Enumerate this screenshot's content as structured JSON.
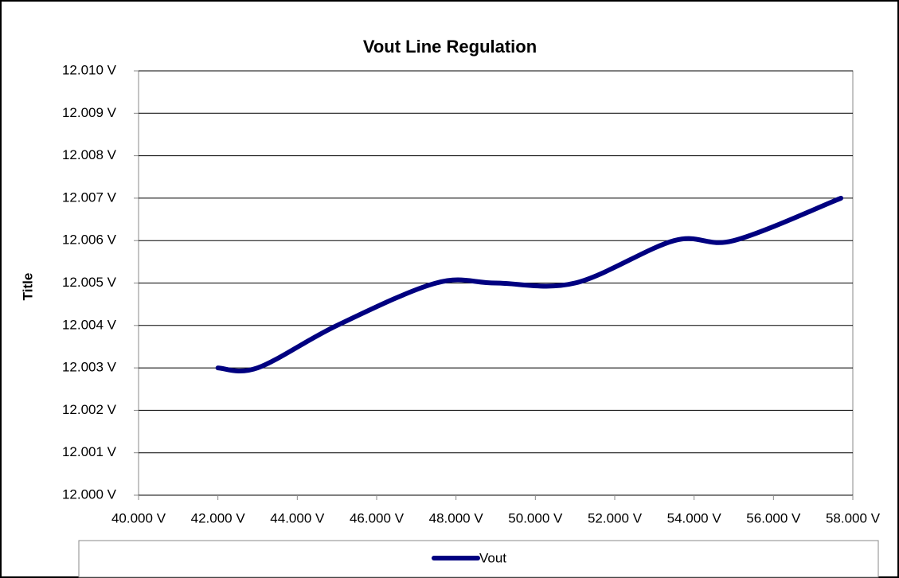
{
  "chart_data": {
    "type": "line",
    "title": "Vout Line Regulation",
    "y_label": "Title",
    "x": [
      42.0,
      43.0,
      45.0,
      47.5,
      49.0,
      51.0,
      53.5,
      55.0,
      57.7
    ],
    "series": [
      {
        "name": "Vout",
        "color": "#000080",
        "values": [
          12.003,
          12.003,
          12.004,
          12.005,
          12.005,
          12.005,
          12.006,
          12.006,
          12.007
        ]
      }
    ],
    "xlim": [
      40,
      58
    ],
    "xticks": [
      {
        "value": 40,
        "label": "40.000 V"
      },
      {
        "value": 42,
        "label": "42.000 V"
      },
      {
        "value": 44,
        "label": "44.000 V"
      },
      {
        "value": 46,
        "label": "46.000 V"
      },
      {
        "value": 48,
        "label": "48.000 V"
      },
      {
        "value": 50,
        "label": "50.000 V"
      },
      {
        "value": 52,
        "label": "52.000 V"
      },
      {
        "value": 54,
        "label": "54.000 V"
      },
      {
        "value": 56,
        "label": "56.000 V"
      },
      {
        "value": 58,
        "label": "58.000 V"
      }
    ],
    "ylim": [
      12.0,
      12.01
    ],
    "yticks": [
      {
        "value": 12.0,
        "label": "12.000 V"
      },
      {
        "value": 12.001,
        "label": "12.001 V"
      },
      {
        "value": 12.002,
        "label": "12.002 V"
      },
      {
        "value": 12.003,
        "label": "12.003 V"
      },
      {
        "value": 12.004,
        "label": "12.004 V"
      },
      {
        "value": 12.005,
        "label": "12.005 V"
      },
      {
        "value": 12.006,
        "label": "12.006 V"
      },
      {
        "value": 12.007,
        "label": "12.007 V"
      },
      {
        "value": 12.008,
        "label": "12.008 V"
      },
      {
        "value": 12.009,
        "label": "12.009 V"
      },
      {
        "value": 12.01,
        "label": "12.010 V"
      }
    ],
    "grid": true,
    "smooth": true,
    "legend": "bottom"
  }
}
